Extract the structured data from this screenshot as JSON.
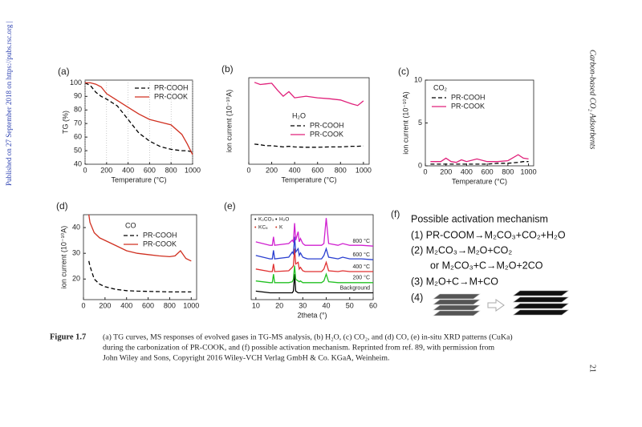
{
  "document": {
    "side_note": "Published on 27 September 2018 on https://pubs.rsc.org |",
    "running_title": "Carbon-based CO₂ Adsorbents",
    "page_number": "21",
    "caption": {
      "label": "Figure 1.7",
      "lines": [
        "(a) TG curves, MS responses of evolved gases in TG-MS analysis, (b) H₂O, (c) CO₂, and (d) CO, (e) in-situ XRD patterns (CuKa)",
        "during the carbonization of PR-COOK, and (f) possible activation mechanism. Reprinted from ref. 89, with permission from",
        "John Wiley and Sons, Copyright 2016 Wiley-VCH Verlag GmbH & Co. KGaA, Weinheim."
      ]
    }
  },
  "mechanism": {
    "panel": "(f)",
    "title": "Possible activation mechanism",
    "steps": [
      "(1) PR-COOM→M₂CO₃+CO₂+H₂O",
      "(2) M₂CO₃→M₂O+CO₂",
      "or M₂CO₃+C→M₂O+2CO",
      "(3) M₂O+C→M+CO",
      "(4)"
    ]
  },
  "chart_data": [
    {
      "type": "line",
      "panel": "(a)",
      "xlabel": "Temperature (°C)",
      "ylabel": "TG (%)",
      "x": [
        0,
        50,
        100,
        150,
        200,
        300,
        400,
        500,
        600,
        700,
        800,
        900,
        950,
        1000
      ],
      "series": [
        {
          "name": "PR-COOH",
          "color": "#000000",
          "linestyle": "dashed",
          "values": [
            100,
            98,
            93,
            90,
            88,
            83,
            73,
            63,
            57,
            53,
            51,
            50,
            50,
            49
          ]
        },
        {
          "name": "PR-COOK",
          "color": "#d03020",
          "linestyle": "solid",
          "values": [
            100,
            100,
            99,
            97,
            92,
            87,
            82,
            77,
            73,
            71,
            69,
            62,
            55,
            47
          ]
        }
      ],
      "xlim": [
        0,
        1000
      ],
      "xticks": [
        0,
        200,
        400,
        600,
        800,
        1000
      ],
      "ylim": [
        40,
        102
      ],
      "yticks": [
        40,
        50,
        60,
        70,
        80,
        90,
        100
      ],
      "xgrid": true,
      "legend": "upper right"
    },
    {
      "type": "line",
      "panel": "(b)",
      "xlabel": "Temperature (°C)",
      "ylabel": "ion current (10⁻¹⁰A)",
      "legend_title": "H₂O",
      "x": [
        50,
        100,
        150,
        200,
        250,
        300,
        350,
        400,
        500,
        600,
        700,
        800,
        900,
        950,
        1000
      ],
      "series": [
        {
          "name": "PR-COOH",
          "color": "#000000",
          "linestyle": "dashed",
          "values": [
            6.5,
            6.3,
            6,
            6,
            5.8,
            5.6,
            5.8,
            5.6,
            5.5,
            5.5,
            5.6,
            5.6,
            5.8,
            5.8,
            5.9
          ]
        },
        {
          "name": "PR-COOK",
          "color": "#e0207a",
          "linestyle": "solid",
          "values": [
            26.5,
            25.8,
            26,
            26.2,
            24,
            22,
            23.5,
            21.5,
            22,
            21.5,
            21.2,
            20.8,
            19.5,
            19,
            20.5
          ]
        }
      ],
      "xlim": [
        0,
        1050
      ],
      "xticks": [
        0,
        200,
        400,
        600,
        800,
        1000
      ],
      "ylim": [
        0,
        28
      ],
      "yticks": [],
      "legend": "center"
    },
    {
      "type": "line",
      "panel": "(c)",
      "xlabel": "Temperature (°C)",
      "ylabel": "ion current (10⁻¹⁰A)",
      "legend_title": "CO₂",
      "x": [
        50,
        100,
        150,
        200,
        250,
        300,
        350,
        400,
        500,
        600,
        700,
        800,
        900,
        950,
        1000
      ],
      "series": [
        {
          "name": "PR-COOH",
          "color": "#000000",
          "linestyle": "dashed",
          "values": [
            0.2,
            0.2,
            0.2,
            0.2,
            0.2,
            0.2,
            0.2,
            0.2,
            0.2,
            0.2,
            0.3,
            0.3,
            0.4,
            0.5,
            0.5
          ]
        },
        {
          "name": "PR-COOK",
          "color": "#e0207a",
          "linestyle": "solid",
          "values": [
            0.5,
            0.5,
            0.5,
            0.9,
            0.5,
            0.4,
            0.7,
            0.5,
            0.8,
            0.5,
            0.5,
            0.6,
            1.3,
            0.9,
            0.8
          ]
        }
      ],
      "xlim": [
        0,
        1050
      ],
      "xticks": [
        0,
        200,
        400,
        600,
        800,
        1000
      ],
      "ylim": [
        0,
        10
      ],
      "yticks": [
        0,
        5,
        10
      ],
      "legend": "upper left"
    },
    {
      "type": "line",
      "panel": "(d)",
      "ylabel": "ion current (10⁻¹⁰A)",
      "legend_title": "CO",
      "x": [
        50,
        60,
        100,
        150,
        200,
        300,
        400,
        500,
        600,
        700,
        800,
        850,
        900,
        950,
        1000
      ],
      "series": [
        {
          "name": "PR-COOH",
          "color": "#000000",
          "linestyle": "dashed",
          "values": [
            27,
            25,
            20,
            18,
            17,
            16,
            15.5,
            15.3,
            15.2,
            15.1,
            15,
            15,
            15,
            15,
            15
          ]
        },
        {
          "name": "PR-COOK",
          "color": "#d03020",
          "linestyle": "solid",
          "values": [
            45,
            42,
            38,
            36,
            35,
            33,
            31,
            30,
            29.5,
            29,
            28.7,
            29,
            31,
            28,
            27
          ]
        }
      ],
      "xlim": [
        0,
        1050
      ],
      "xticks": [
        0,
        200,
        400,
        600,
        800,
        1000
      ],
      "ylim": [
        12,
        45
      ],
      "yticks": [
        20,
        30,
        40
      ],
      "legend": "upper center"
    },
    {
      "type": "line",
      "panel": "(e)",
      "xlabel": "2theta (°)",
      "marker_legend": [
        "K₂CO₃",
        "H₂O",
        "KC₈",
        "K"
      ],
      "x": [
        10,
        16,
        17,
        17.5,
        18,
        24,
        25.5,
        26,
        26.5,
        27,
        28,
        28.5,
        29,
        30,
        31,
        32,
        35,
        38,
        39,
        40,
        41,
        45,
        47,
        50,
        55,
        60
      ],
      "series": [
        {
          "name": "Background",
          "color": "#000000",
          "linestyle": "solid",
          "values": [
            10,
            8,
            8,
            8,
            8,
            8,
            8,
            10,
            30,
            10,
            8,
            8,
            8,
            8,
            8,
            8,
            8,
            8,
            8,
            8,
            8,
            8,
            8,
            8,
            8,
            8
          ]
        },
        {
          "name": "200 °C",
          "color": "#22c022",
          "linestyle": "solid",
          "values": [
            22,
            20,
            20,
            30,
            20,
            20,
            21,
            24,
            40,
            24,
            22,
            21,
            22,
            20,
            20,
            20,
            20,
            20,
            22,
            30,
            21,
            20,
            20,
            20,
            20,
            20
          ]
        },
        {
          "name": "400 °C",
          "color": "#e03030",
          "linestyle": "solid",
          "values": [
            36,
            33,
            33,
            42,
            33,
            34,
            38,
            40,
            60,
            42,
            44,
            36,
            38,
            34,
            33,
            33,
            33,
            33,
            36,
            44,
            34,
            33,
            34,
            33,
            33,
            33
          ]
        },
        {
          "name": "600 °C",
          "color": "#2a3fd0",
          "linestyle": "solid",
          "values": [
            52,
            48,
            48,
            58,
            48,
            50,
            56,
            54,
            74,
            56,
            60,
            52,
            55,
            50,
            49,
            48,
            48,
            48,
            52,
            60,
            50,
            48,
            50,
            48,
            48,
            47
          ]
        },
        {
          "name": "800 °C",
          "color": "#d020d0",
          "linestyle": "solid",
          "values": [
            68,
            64,
            64,
            74,
            64,
            66,
            70,
            68,
            90,
            70,
            80,
            68,
            72,
            66,
            64,
            64,
            64,
            64,
            66,
            96,
            66,
            64,
            66,
            64,
            64,
            63
          ]
        }
      ],
      "xlim": [
        8,
        60
      ],
      "xticks": [
        10,
        20,
        30,
        40,
        50,
        60
      ],
      "ylim": [
        0,
        100
      ],
      "yticks": [],
      "legend": "series-labels"
    }
  ]
}
